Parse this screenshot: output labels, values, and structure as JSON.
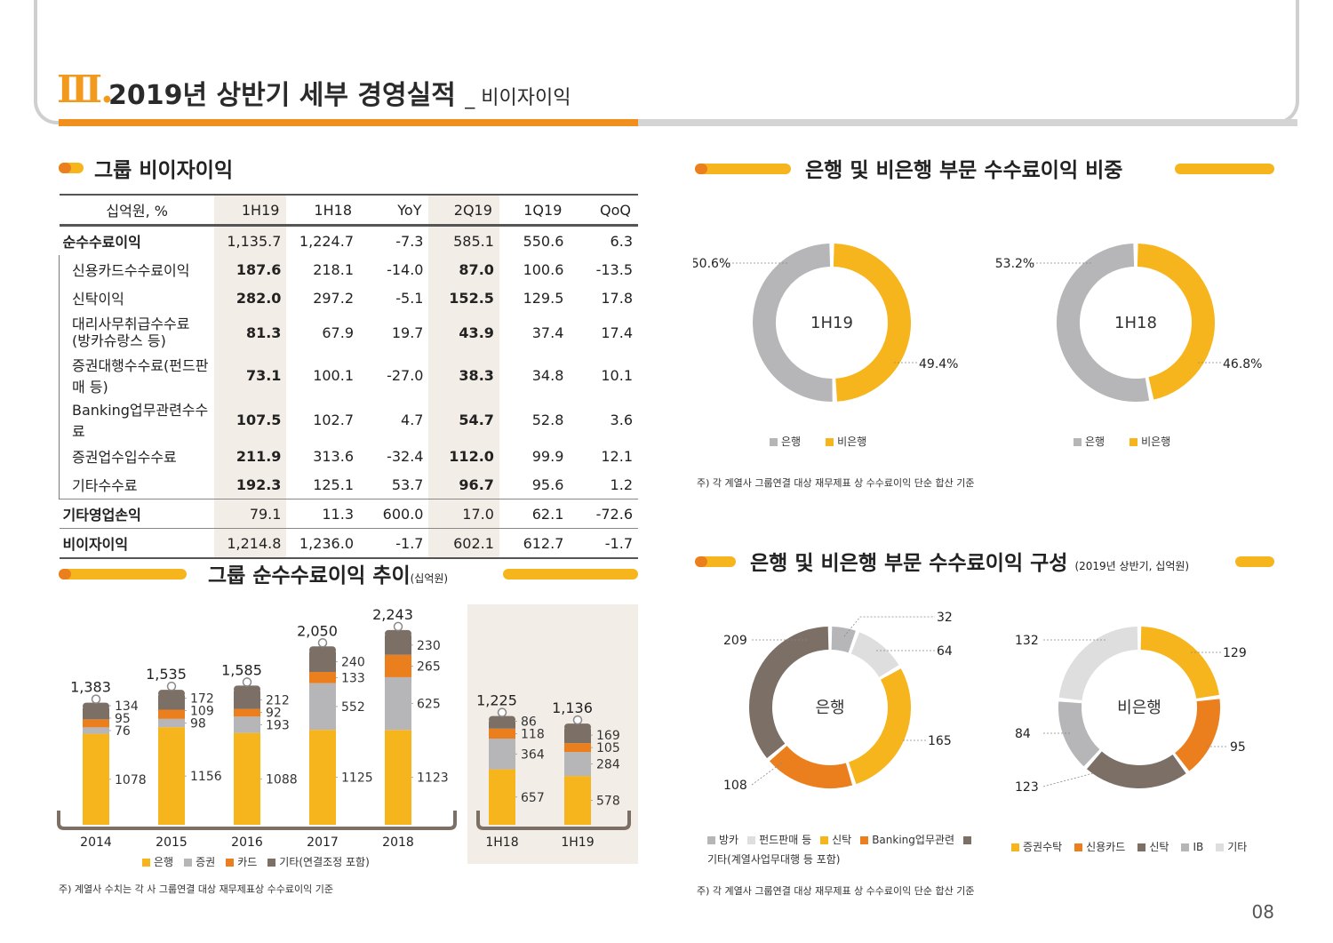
{
  "header": {
    "roman": "Ⅲ.",
    "title": "2019년 상반기 세부 경영실적",
    "subtitle": "_ 비이자이익"
  },
  "colors": {
    "bank_gray": "#b6b6b8",
    "nonbank_yellow": "#f6b51c",
    "orange": "#ec7f1d",
    "brown": "#7b6f66",
    "light_gray": "#dedede",
    "highlight": "#f2ede6"
  },
  "section1": {
    "title": "그룹 비이자이익"
  },
  "table": {
    "headers": [
      "십억원, %",
      "1H19",
      "1H18",
      "YoY",
      "2Q19",
      "1Q19",
      "QoQ"
    ],
    "rows": [
      {
        "label": "순수수료이익",
        "values": [
          "1,135.7",
          "1,224.7",
          "-7.3",
          "585.1",
          "550.6",
          "6.3"
        ],
        "kind": "total"
      },
      {
        "label": "신용카드수수료이익",
        "values": [
          "187.6",
          "218.1",
          "-14.0",
          "87.0",
          "100.6",
          "-13.5"
        ],
        "kind": "sub"
      },
      {
        "label": "신탁이익",
        "values": [
          "282.0",
          "297.2",
          "-5.1",
          "152.5",
          "129.5",
          "17.8"
        ],
        "kind": "sub"
      },
      {
        "label": "대리사무취급수수료",
        "label2": "(방카슈랑스 등)",
        "values": [
          "81.3",
          "67.9",
          "19.7",
          "43.9",
          "37.4",
          "17.4"
        ],
        "kind": "sub"
      },
      {
        "label": "증권대행수수료(펀드판매 등)",
        "values": [
          "73.1",
          "100.1",
          "-27.0",
          "38.3",
          "34.8",
          "10.1"
        ],
        "kind": "sub"
      },
      {
        "label": "Banking업무관련수수료",
        "values": [
          "107.5",
          "102.7",
          "4.7",
          "54.7",
          "52.8",
          "3.6"
        ],
        "kind": "sub"
      },
      {
        "label": "증권업수입수수료",
        "values": [
          "211.9",
          "313.6",
          "-32.4",
          "112.0",
          "99.9",
          "12.1"
        ],
        "kind": "sub"
      },
      {
        "label": "기타수수료",
        "values": [
          "192.3",
          "125.1",
          "53.7",
          "96.7",
          "95.6",
          "1.2"
        ],
        "kind": "sub"
      },
      {
        "label": "기타영업손익",
        "values": [
          "79.1",
          "11.3",
          "600.0",
          "17.0",
          "62.1",
          "-72.6"
        ],
        "kind": "total"
      },
      {
        "label": "비이자이익",
        "values": [
          "1,214.8",
          "1,236.0",
          "-1.7",
          "602.1",
          "612.7",
          "-1.7"
        ],
        "kind": "total"
      }
    ]
  },
  "section2": {
    "title": "그룹 순수수료이익 추이",
    "unit": "(십억원)"
  },
  "section3": {
    "title": "은행 및 비은행 부문 수수료이익 비중"
  },
  "section4": {
    "title": "은행 및 비은행 부문 수수료이익 구성",
    "unit": "(2019년 상반기, 십억원)"
  },
  "chart_data": [
    {
      "type": "bar",
      "stacked": true,
      "categories": [
        "2014",
        "2015",
        "2016",
        "2017",
        "2018",
        "1H18",
        "1H19"
      ],
      "totals": [
        "1,383",
        "1,535",
        "1,585",
        "2,050",
        "2,243",
        "1,225",
        "1,136"
      ],
      "series": [
        {
          "name": "은행",
          "values": [
            1078,
            1156,
            1088,
            1125,
            1123,
            657,
            578
          ]
        },
        {
          "name": "증권",
          "values": [
            76,
            98,
            193,
            552,
            625,
            364,
            284
          ]
        },
        {
          "name": "카드",
          "values": [
            95,
            109,
            92,
            133,
            265,
            118,
            105
          ]
        },
        {
          "name": "기타(연결조정 포함)",
          "values": [
            134,
            172,
            212,
            240,
            230,
            86,
            169
          ]
        }
      ],
      "legend": [
        "은행",
        "증권",
        "카드",
        "기타(연결조정 포함)"
      ],
      "note": "주) 계열사 수치는 각 사 그룹연결 대상 재무제표상 수수료이익 기준"
    },
    {
      "type": "pie",
      "donut": true,
      "charts": [
        {
          "center_label": "1H19",
          "slices": [
            {
              "name": "은행",
              "value": 50.6,
              "label": "50.6%"
            },
            {
              "name": "비은행",
              "value": 49.4,
              "label": "49.4%"
            }
          ]
        },
        {
          "center_label": "1H18",
          "slices": [
            {
              "name": "은행",
              "value": 53.2,
              "label": "53.2%"
            },
            {
              "name": "비은행",
              "value": 46.8,
              "label": "46.8%"
            }
          ]
        }
      ],
      "legend": [
        "은행",
        "비은행"
      ],
      "note": "주) 각 계열사 그룹연결 대상 재무제표 상 수수료이익 단순 합산 기준"
    },
    {
      "type": "pie",
      "donut": true,
      "charts": [
        {
          "center_label": "은행",
          "slices": [
            {
              "name": "방카",
              "value": 32
            },
            {
              "name": "펀드판매 등",
              "value": 64
            },
            {
              "name": "신탁",
              "value": 165
            },
            {
              "name": "Banking업무관련",
              "value": 108
            },
            {
              "name": "기타(계열사업무대행 등 포함)",
              "value": 209
            }
          ]
        },
        {
          "center_label": "비은행",
          "slices": [
            {
              "name": "증권수탁",
              "value": 129
            },
            {
              "name": "신용카드",
              "value": 95
            },
            {
              "name": "신탁",
              "value": 123
            },
            {
              "name": "IB",
              "value": 84
            },
            {
              "name": "기타",
              "value": 132
            }
          ]
        }
      ],
      "legend_bank": [
        "방카",
        "펀드판매 등",
        "신탁",
        "Banking업무관련",
        "기타(계열사업무대행 등 포함)"
      ],
      "legend_nonbank": [
        "증권수탁",
        "신용카드",
        "신탁",
        "IB",
        "기타"
      ],
      "note": "주) 각 계열사 그룹연결 대상 재무제표 상 수수료이익 단순 합산 기준"
    }
  ],
  "page_number": "08"
}
